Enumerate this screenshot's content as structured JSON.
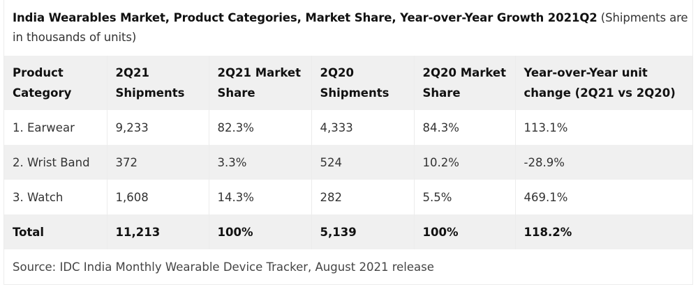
{
  "caption": {
    "title": "India Wearables Market, Product Categories, Market Share, Year-over-Year Growth 2021Q2",
    "note": " (Shipments are in thousands of units)"
  },
  "table": {
    "headers": [
      [
        "Product",
        "Category"
      ],
      [
        "2Q21",
        "Shipments"
      ],
      [
        "2Q21 Market",
        "Share"
      ],
      [
        "2Q20",
        "Shipments"
      ],
      [
        "2Q20 Market",
        "Share"
      ],
      [
        "Year-over-Year unit",
        "change (2Q21 vs 2Q20)"
      ]
    ],
    "rows": [
      [
        "1. Earwear",
        "9,233",
        "82.3%",
        "4,333",
        "84.3%",
        "113.1%"
      ],
      [
        "2. Wrist Band",
        "372",
        "3.3%",
        "524",
        "10.2%",
        "-28.9%"
      ],
      [
        "3. Watch",
        "1,608",
        "14.3%",
        "282",
        "5.5%",
        "469.1%"
      ]
    ],
    "total": [
      "Total",
      "11,213",
      "100%",
      "5,139",
      "100%",
      "118.2%"
    ],
    "source": "Source: IDC India Monthly Wearable Device Tracker, August 2021 release"
  },
  "chart_data": {
    "type": "table",
    "title": "India Wearables Market, Product Categories, Market Share, Year-over-Year Growth 2021Q2 (Shipments are in thousands of units)",
    "columns": [
      "Product Category",
      "2Q21 Shipments",
      "2Q21 Market Share",
      "2Q20 Shipments",
      "2Q20 Market Share",
      "Year-over-Year unit change (2Q21 vs 2Q20)"
    ],
    "rows": [
      [
        "1. Earwear",
        9233,
        82.3,
        4333,
        84.3,
        113.1
      ],
      [
        "2. Wrist Band",
        372,
        3.3,
        524,
        10.2,
        -28.9
      ],
      [
        "3. Watch",
        1608,
        14.3,
        282,
        5.5,
        469.1
      ],
      [
        "Total",
        11213,
        100,
        5139,
        100,
        118.2
      ]
    ],
    "units": {
      "shipments": "thousands of units",
      "share": "%",
      "change": "%"
    },
    "source": "Source: IDC India Monthly Wearable Device Tracker, August 2021 release"
  }
}
